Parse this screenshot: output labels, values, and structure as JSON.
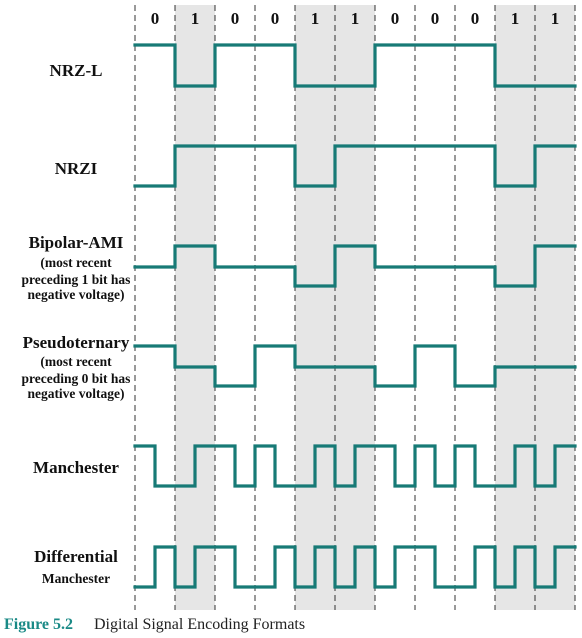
{
  "bits": [
    "0",
    "1",
    "0",
    "0",
    "1",
    "1",
    "0",
    "0",
    "0",
    "1",
    "1"
  ],
  "rows": [
    {
      "name": "nrz-l",
      "label": [
        "NRZ-L"
      ],
      "levels": [
        "H",
        "L",
        "H",
        "H",
        "L",
        "L",
        "H",
        "H",
        "H",
        "L",
        "L"
      ]
    },
    {
      "name": "nrzi",
      "label": [
        "NRZI"
      ],
      "levels": [
        "L",
        "H",
        "H",
        "H",
        "L",
        "H",
        "H",
        "H",
        "H",
        "L",
        "H"
      ]
    },
    {
      "name": "bipolar-ami",
      "label": [
        "Bipolar-AMI",
        "(most recent",
        "preceding 1 bit has",
        "negative voltage)"
      ],
      "levels": [
        "Z",
        "P",
        "Z",
        "Z",
        "N",
        "P",
        "Z",
        "Z",
        "Z",
        "N",
        "P"
      ]
    },
    {
      "name": "pseudoternary",
      "label": [
        "Pseudoternary",
        "(most recent",
        "preceding 0 bit has",
        "negative voltage)"
      ],
      "levels": [
        "P",
        "Z",
        "N",
        "P",
        "Z",
        "Z",
        "N",
        "P",
        "N",
        "Z",
        "Z"
      ]
    },
    {
      "name": "manchester",
      "label": [
        "Manchester"
      ],
      "levels": [
        "HL",
        "LH",
        "HL",
        "HL",
        "LH",
        "LH",
        "HL",
        "HL",
        "HL",
        "LH",
        "LH"
      ]
    },
    {
      "name": "differential-manchester",
      "label": [
        "Differential",
        "Manchester"
      ],
      "levels": [
        "LH",
        "LH",
        "HL",
        "LH",
        "LH",
        "LH",
        "LH",
        "HL",
        "LH",
        "LH",
        "LH"
      ]
    }
  ],
  "caption": {
    "number": "Figure 5.2",
    "text": "Digital Signal Encoding Formats"
  },
  "colors": {
    "signal": "#177a76",
    "shade": "#e6e6e6",
    "caption_number": "#1a8a86"
  }
}
